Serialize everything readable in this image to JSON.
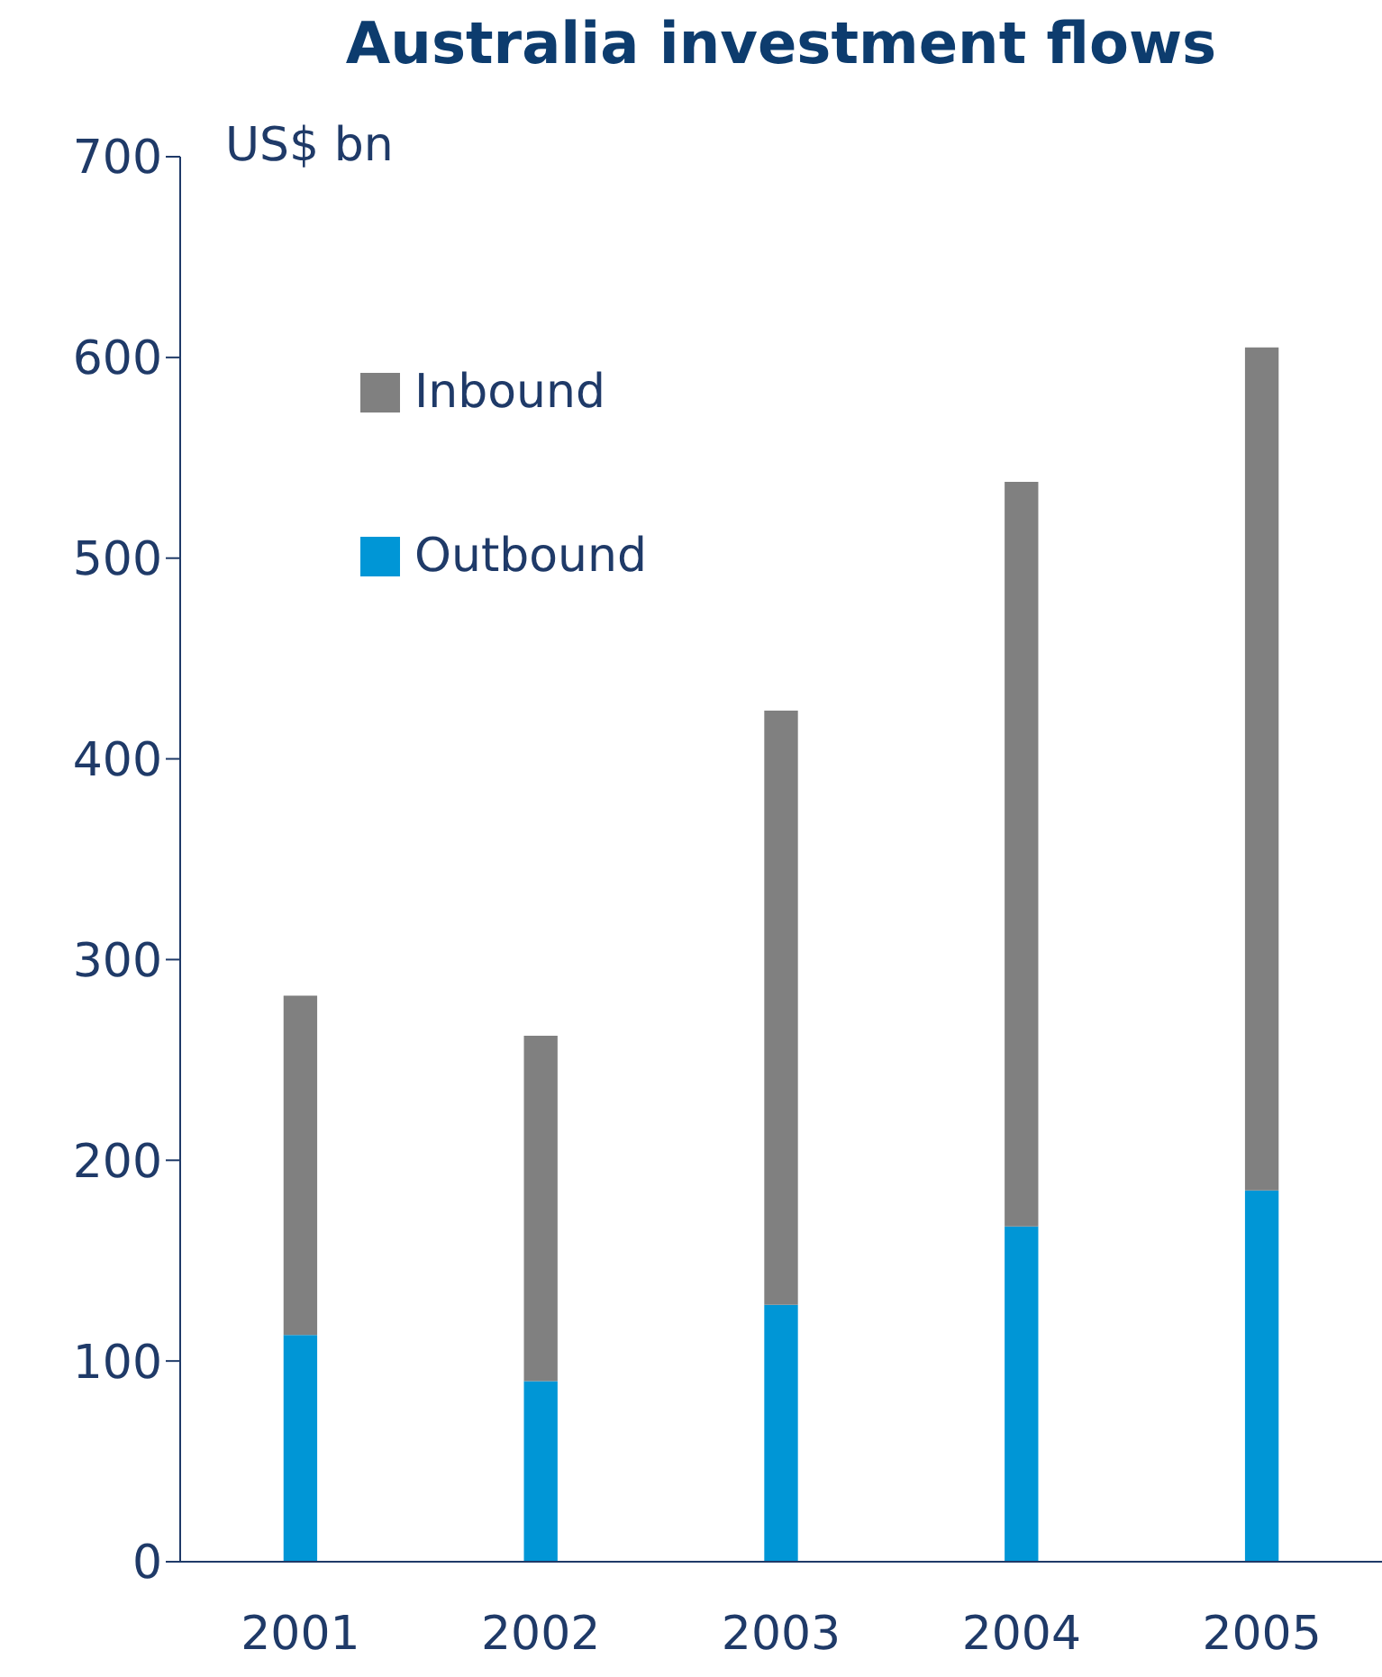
{
  "chart_data": {
    "type": "bar",
    "title": "Australia investment flows",
    "ylabel": "US$ bn",
    "categories": [
      "2001",
      "2002",
      "2003",
      "2004",
      "2005"
    ],
    "stacked": true,
    "series": [
      {
        "name": "Outbound",
        "color": "#0096d6",
        "values": [
          113,
          90,
          128,
          167,
          185
        ]
      },
      {
        "name": "Inbound",
        "color": "#808080",
        "values": [
          169,
          172,
          296,
          371,
          420
        ]
      }
    ],
    "ylim": [
      0,
      700
    ],
    "yticks": [
      0,
      100,
      200,
      300,
      400,
      500,
      600,
      700
    ],
    "grid": false,
    "legend": "top left"
  }
}
